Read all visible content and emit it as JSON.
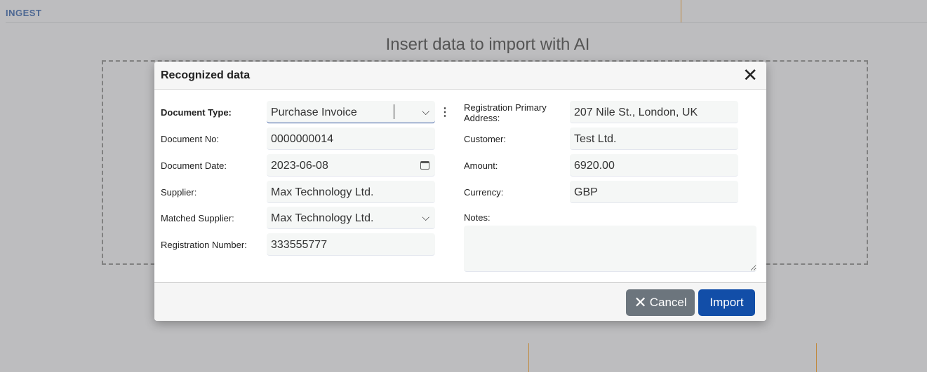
{
  "header": {
    "section": "INGEST"
  },
  "background": {
    "title": "Insert data to import with AI"
  },
  "dialog": {
    "title": "Recognized data",
    "left_fields": [
      {
        "label": "Document Type:",
        "value": "Purchase Invoice",
        "type": "select"
      },
      {
        "label": "Document No:",
        "value": "0000000014"
      },
      {
        "label": "Document Date:",
        "value": "2023-06-08",
        "type": "date"
      },
      {
        "label": "Supplier:",
        "value": "Max Technology Ltd."
      },
      {
        "label": "Matched Supplier:",
        "value": "Max Technology Ltd.",
        "type": "select"
      },
      {
        "label": "Registration Number:",
        "value": "333555777"
      }
    ],
    "right_fields": [
      {
        "label": "Registration Primary Address:",
        "value": "207 Nile St., London, UK"
      },
      {
        "label": "Customer:",
        "value": "Test Ltd."
      },
      {
        "label": "Amount:",
        "value": "6920.00"
      },
      {
        "label": "Currency:",
        "value": "GBP"
      }
    ],
    "notes": {
      "label": "Notes:",
      "value": ""
    },
    "buttons": {
      "cancel": "Cancel",
      "import": "Import"
    }
  },
  "colors": {
    "primary": "#124ea8",
    "secondary": "#6c757d",
    "accent_line": "#c08a40"
  }
}
